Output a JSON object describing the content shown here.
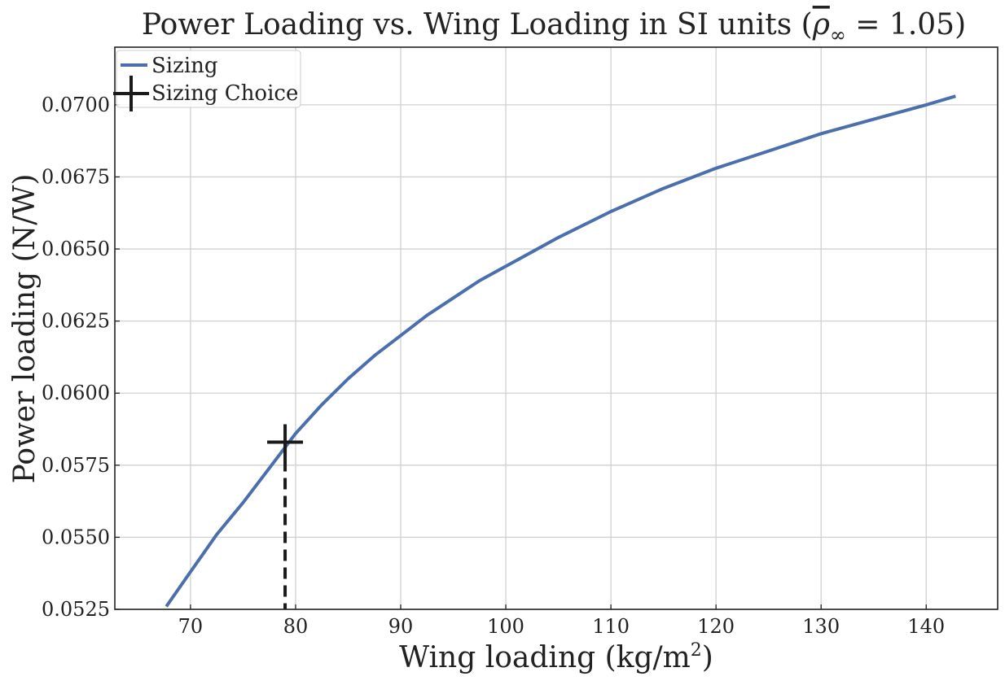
{
  "chart_data": {
    "type": "line",
    "title": "Power Loading vs. Wing Loading in SI units (ρ̅∞ = 1.05)",
    "title_main": "Power Loading vs. Wing Loading in SI units (",
    "title_rho": "ρ",
    "title_inf": "∞",
    "title_value": " = 1.05)",
    "xlabel": "Wing loading (kg/m²)",
    "xlabel_main": "Wing loading (kg/m",
    "xlabel_sup": "2",
    "xlabel_end": ")",
    "ylabel": "Power loading (N/W)",
    "xlim": [
      62.8,
      146.8
    ],
    "ylim": [
      0.0525,
      0.072
    ],
    "xticks": [
      70,
      80,
      90,
      100,
      110,
      120,
      130,
      140
    ],
    "xtick_labels": [
      "70",
      "80",
      "90",
      "100",
      "110",
      "120",
      "130",
      "140"
    ],
    "yticks": [
      0.0525,
      0.055,
      0.0575,
      0.06,
      0.0625,
      0.065,
      0.0675,
      0.07
    ],
    "ytick_labels": [
      "0.0525",
      "0.0550",
      "0.0575",
      "0.0600",
      "0.0625",
      "0.0650",
      "0.0675",
      "0.0700"
    ],
    "grid": true,
    "legend_position": "top-left",
    "series": [
      {
        "name": "Sizing",
        "color": "#4a6fac",
        "style": "solid",
        "x": [
          67.7,
          70,
          72.5,
          75,
          77.5,
          80,
          82.5,
          85,
          87.5,
          90,
          92.5,
          95,
          97.5,
          100,
          105,
          110,
          115,
          120,
          125,
          130,
          135,
          140,
          142.8
        ],
        "y": [
          0.0526,
          0.0538,
          0.0551,
          0.0562,
          0.0574,
          0.0586,
          0.0596,
          0.0605,
          0.0613,
          0.062,
          0.0627,
          0.0633,
          0.0639,
          0.0644,
          0.0654,
          0.0663,
          0.0671,
          0.0678,
          0.0684,
          0.069,
          0.0695,
          0.07,
          0.0703
        ]
      }
    ],
    "choice": {
      "name": "Sizing Choice",
      "marker": "plus",
      "color": "#1a1a1a",
      "x": 79.0,
      "y": 0.0583
    }
  }
}
